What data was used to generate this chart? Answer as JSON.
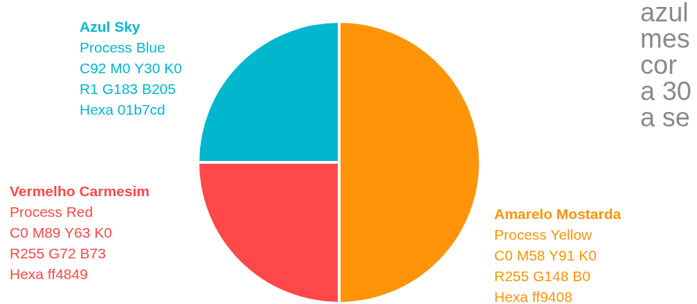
{
  "chart_data": {
    "type": "pie",
    "categories": [
      "Amarelo Mostarda",
      "Vermelho Carmesim",
      "Azul Sky"
    ],
    "values": [
      50,
      25,
      25
    ],
    "colors": [
      "#ff9408",
      "#ff4849",
      "#01b7cd"
    ],
    "annotations": [
      "Process Yellow",
      "C0 M58 Y91 K0",
      "R255 G148 B0",
      "Hexa ff9408",
      "Process Red",
      "C0 M89 Y63 K0",
      "R255 G72 B73",
      "Hexa ff4849",
      "Process Blue",
      "C92 M0 Y30 K0",
      "R1 G183 B205",
      "Hexa 01b7cd",
      "azul",
      "mes",
      "cor",
      "a 30",
      "a se"
    ]
  }
}
